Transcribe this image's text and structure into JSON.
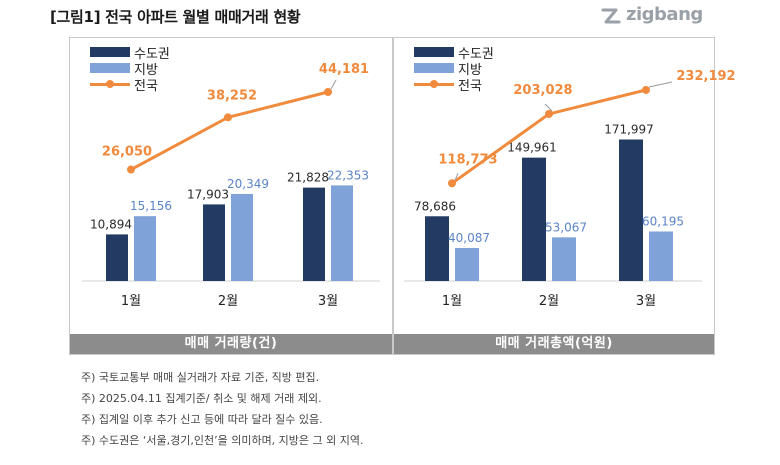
{
  "title": "[그림1] 전국 아파트 월별 매매거래 현황",
  "brand": "zigbang",
  "colors": {
    "capital": "#233A63",
    "regional": "#7FA2D9",
    "national": "#F08A3C",
    "footer": "#8c8c8c"
  },
  "legend": [
    "수도권",
    "지방",
    "전국"
  ],
  "chart_data": [
    {
      "type": "bar",
      "title": "매매 거래량(건)",
      "categories": [
        "1월",
        "2월",
        "3월"
      ],
      "series": [
        {
          "name": "수도권",
          "type": "bar",
          "values": [
            10894,
            17903,
            21828
          ],
          "labels": [
            "10,894",
            "17,903",
            "21,828"
          ]
        },
        {
          "name": "지방",
          "type": "bar",
          "values": [
            15156,
            20349,
            22353
          ],
          "labels": [
            "15,156",
            "20,349",
            "22,353"
          ]
        },
        {
          "name": "전국",
          "type": "line",
          "values": [
            26050,
            38252,
            44181
          ],
          "labels": [
            "26,050",
            "38,252",
            "44,181"
          ]
        }
      ],
      "ylim": [
        0,
        50000
      ],
      "grid": false,
      "legend_position": "top-left"
    },
    {
      "type": "bar",
      "title": "매매 거래총액(억원)",
      "categories": [
        "1월",
        "2월",
        "3월"
      ],
      "series": [
        {
          "name": "수도권",
          "type": "bar",
          "values": [
            78686,
            149961,
            171997
          ],
          "labels": [
            "78,686",
            "149,961",
            "171,997"
          ]
        },
        {
          "name": "지방",
          "type": "bar",
          "values": [
            40087,
            53067,
            60195
          ],
          "labels": [
            "40,087",
            "53,067",
            "60,195"
          ]
        },
        {
          "name": "전국",
          "type": "line",
          "values": [
            118773,
            203028,
            232192
          ],
          "labels": [
            "118,773",
            "203,028",
            "232,192"
          ]
        }
      ],
      "ylim": [
        0,
        260000
      ],
      "grid": false,
      "legend_position": "top-left"
    }
  ],
  "notes": [
    "주) 국토교통부 매매 실거래가 자료 기준, 직방 편집.",
    "주) 2025.04.11 집계기준/ 취소 및 해제 거래 제외.",
    "주) 집계일 이후 추가 신고 등에 따라 달라 질수 있음.",
    "주) 수도권은 ‘서울,경기,인천’을 의미하며, 지방은 그 외 지역."
  ]
}
